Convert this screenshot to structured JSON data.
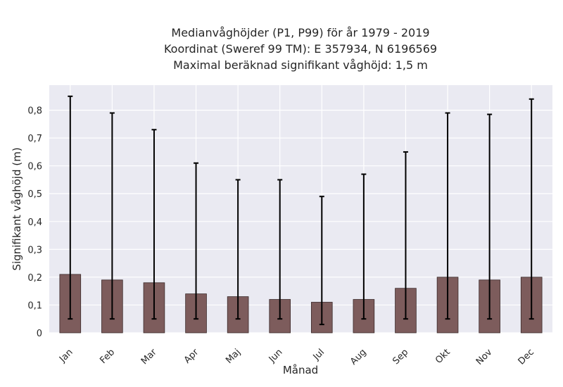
{
  "chart_data": {
    "type": "bar",
    "title_lines": [
      "Medianvåghöjder (P1, P99) för år 1979 - 2019",
      "Koordinat (Sweref 99 TM): E 357934, N 6196569",
      "Maximal beräknad signifikant våghöjd: 1,5 m"
    ],
    "xlabel": "Månad",
    "ylabel": "Signifikant våghöjd (m)",
    "categories": [
      "Jan",
      "Feb",
      "Mar",
      "Apr",
      "Maj",
      "Jun",
      "Jul",
      "Aug",
      "Sep",
      "Okt",
      "Nov",
      "Dec"
    ],
    "values": [
      0.21,
      0.19,
      0.18,
      0.14,
      0.13,
      0.12,
      0.11,
      0.12,
      0.16,
      0.2,
      0.19,
      0.2
    ],
    "p1": [
      0.05,
      0.05,
      0.05,
      0.05,
      0.05,
      0.05,
      0.03,
      0.05,
      0.05,
      0.05,
      0.05,
      0.05
    ],
    "p99": [
      0.85,
      0.79,
      0.73,
      0.61,
      0.55,
      0.55,
      0.49,
      0.57,
      0.65,
      0.79,
      0.785,
      0.84
    ],
    "ylim": [
      0,
      0.89
    ],
    "yticks": [
      0,
      0.1,
      0.2,
      0.3,
      0.4,
      0.5,
      0.6,
      0.7,
      0.8
    ],
    "ytick_labels": [
      "0",
      "0,1",
      "0,2",
      "0,3",
      "0,4",
      "0,5",
      "0,6",
      "0,7",
      "0,8"
    ],
    "grid": true,
    "colors": {
      "bar": "#7d5c5c",
      "bar_edge": "#3a2a2a",
      "error": "#000000",
      "plot_bg": "#eaeaf2",
      "grid": "#ffffff"
    }
  }
}
